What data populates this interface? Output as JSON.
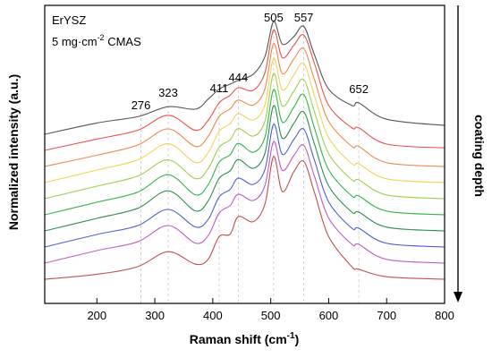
{
  "chart_data": {
    "type": "line",
    "title": "",
    "xlabel": "Raman shift (cm",
    "xlabel_sup": "-1",
    "xlabel_end": ")",
    "ylabel": "Normalized intensity (a.u.)",
    "xlim": [
      110,
      800
    ],
    "x_ticks": [
      200,
      300,
      400,
      500,
      600,
      700,
      800
    ],
    "annotation_sample": "ErYSZ",
    "annotation_load": "5 mg·cm",
    "annotation_load_sup": "-2",
    "annotation_load_end": " CMAS",
    "depth_label": "coating depth",
    "depth_direction": "down",
    "grid": false,
    "peak_markers": [
      {
        "label": "276",
        "x": 276
      },
      {
        "label": "323",
        "x": 323
      },
      {
        "label": "411",
        "x": 411
      },
      {
        "label": "444",
        "x": 444
      },
      {
        "label": "505",
        "x": 505
      },
      {
        "label": "557",
        "x": 557
      },
      {
        "label": "652",
        "x": 652
      }
    ],
    "x": [
      110,
      200,
      270,
      323,
      370,
      392,
      411,
      430,
      444,
      470,
      490,
      505,
      520,
      540,
      557,
      575,
      600,
      640,
      652,
      700,
      800
    ],
    "series": [
      {
        "color": "#555555",
        "values": [
          0.0,
          0.09,
          0.14,
          0.22,
          0.2,
          0.28,
          0.36,
          0.4,
          0.43,
          0.48,
          0.62,
          0.9,
          0.72,
          0.78,
          0.86,
          0.64,
          0.36,
          0.23,
          0.25,
          0.12,
          0.07
        ]
      },
      {
        "color": "#e8524a",
        "values": [
          0.0,
          0.09,
          0.16,
          0.28,
          0.16,
          0.24,
          0.38,
          0.44,
          0.5,
          0.48,
          0.62,
          0.96,
          0.74,
          0.84,
          0.92,
          0.7,
          0.36,
          0.18,
          0.18,
          0.05,
          0.02
        ]
      },
      {
        "color": "#f08a4e",
        "values": [
          0.0,
          0.09,
          0.17,
          0.3,
          0.16,
          0.24,
          0.4,
          0.46,
          0.53,
          0.49,
          0.62,
          0.98,
          0.74,
          0.86,
          0.94,
          0.7,
          0.36,
          0.16,
          0.16,
          0.03,
          0.0
        ]
      },
      {
        "color": "#f3d35a",
        "values": [
          0.0,
          0.1,
          0.18,
          0.31,
          0.16,
          0.24,
          0.41,
          0.47,
          0.55,
          0.5,
          0.62,
          0.99,
          0.74,
          0.86,
          0.95,
          0.7,
          0.36,
          0.15,
          0.15,
          0.03,
          0.0
        ]
      },
      {
        "color": "#9fd14f",
        "values": [
          0.0,
          0.1,
          0.18,
          0.31,
          0.16,
          0.24,
          0.41,
          0.47,
          0.56,
          0.5,
          0.62,
          1.0,
          0.74,
          0.86,
          0.95,
          0.7,
          0.36,
          0.15,
          0.15,
          0.03,
          0.0
        ]
      },
      {
        "color": "#35b54a",
        "values": [
          0.0,
          0.1,
          0.18,
          0.32,
          0.16,
          0.24,
          0.42,
          0.48,
          0.57,
          0.5,
          0.62,
          1.0,
          0.74,
          0.86,
          0.96,
          0.7,
          0.36,
          0.15,
          0.15,
          0.03,
          0.0
        ]
      },
      {
        "color": "#2f8f4e",
        "values": [
          0.0,
          0.1,
          0.18,
          0.32,
          0.16,
          0.24,
          0.42,
          0.48,
          0.57,
          0.5,
          0.62,
          1.0,
          0.74,
          0.86,
          0.95,
          0.7,
          0.36,
          0.15,
          0.15,
          0.03,
          0.0
        ]
      },
      {
        "color": "#4d5fd6",
        "values": [
          0.0,
          0.1,
          0.17,
          0.3,
          0.16,
          0.22,
          0.4,
          0.46,
          0.55,
          0.5,
          0.62,
          0.98,
          0.74,
          0.86,
          0.94,
          0.7,
          0.36,
          0.15,
          0.15,
          0.03,
          0.0
        ]
      },
      {
        "color": "#c05cc4",
        "values": [
          0.0,
          0.1,
          0.17,
          0.3,
          0.16,
          0.22,
          0.4,
          0.46,
          0.55,
          0.5,
          0.62,
          0.97,
          0.74,
          0.86,
          0.94,
          0.7,
          0.36,
          0.15,
          0.15,
          0.03,
          0.0
        ]
      },
      {
        "color": "#c0504d",
        "values": [
          0.0,
          0.04,
          0.1,
          0.22,
          0.12,
          0.16,
          0.34,
          0.36,
          0.5,
          0.46,
          0.6,
          0.98,
          0.7,
          0.86,
          0.94,
          0.7,
          0.34,
          0.1,
          0.08,
          0.02,
          0.0
        ]
      }
    ]
  }
}
